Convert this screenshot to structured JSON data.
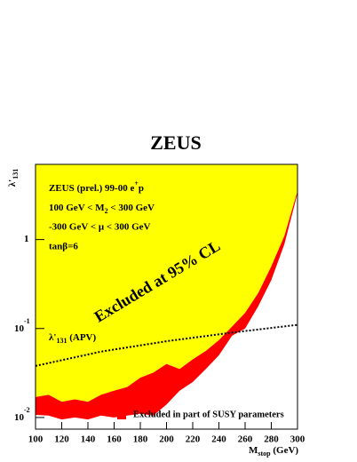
{
  "chart_data": {
    "type": "exclusion",
    "title": "ZEUS",
    "x_label": {
      "main": "M",
      "sub": "stop",
      "unit": " (GeV)"
    },
    "y_label": {
      "main": "λ'",
      "sub": "131"
    },
    "x": [
      100,
      110,
      120,
      130,
      140,
      150,
      160,
      170,
      180,
      190,
      200,
      210,
      220,
      230,
      240,
      250,
      260,
      270,
      280,
      290,
      300
    ],
    "excluded": {
      "color": "#ffff00",
      "values": [
        0.017,
        0.018,
        0.015,
        0.016,
        0.015,
        0.018,
        0.02,
        0.022,
        0.028,
        0.032,
        0.04,
        0.035,
        0.045,
        0.056,
        0.074,
        0.105,
        0.15,
        0.25,
        0.5,
        1.1,
        3.5
      ]
    },
    "series": [
      {
        "name": "Excluded in part of SUSY parameters",
        "color": "#ff0000",
        "values": [
          0.0107,
          0.0105,
          0.0095,
          0.01,
          0.0095,
          0.0105,
          0.01,
          0.0105,
          0.011,
          0.0105,
          0.014,
          0.02,
          0.025,
          0.035,
          0.05,
          0.083,
          0.1,
          0.178,
          0.35,
          0.89,
          3.3
        ]
      }
    ],
    "apv": {
      "label": {
        "main": "λ'",
        "sub": "131",
        "rest": " (APV)"
      },
      "x": [
        100,
        150,
        200,
        250,
        300
      ],
      "values": [
        0.038,
        0.055,
        0.072,
        0.09,
        0.11
      ]
    },
    "annotations": {
      "region": "Excluded at 95% CL",
      "line1": {
        "main": "ZEUS (prel.) 99-00 e",
        "sup": "+",
        "rest": "p"
      },
      "line2": {
        "main": "100 GeV < M",
        "sub": "2",
        "rest": " < 300 GeV"
      },
      "line3": "-300 GeV < μ < 300 GeV",
      "line4": "tanβ=6"
    },
    "log_y": true,
    "xlim": [
      100,
      300
    ],
    "ylim": [
      0.0074,
      7
    ],
    "xticks": [
      100,
      120,
      140,
      160,
      180,
      200,
      220,
      240,
      260,
      280,
      300
    ],
    "yticks": [
      {
        "value": 0.01,
        "label": "10",
        "exponent": "-2"
      },
      {
        "value": 0.1,
        "label": "10",
        "exponent": "-1"
      },
      1
    ]
  }
}
